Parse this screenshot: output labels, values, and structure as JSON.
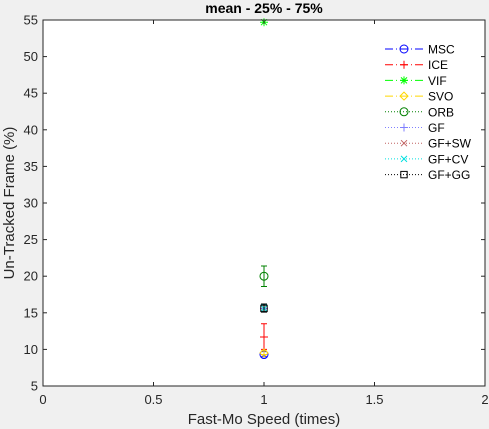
{
  "chart_data": {
    "type": "scatter",
    "title": "mean - 25% - 75%",
    "xlabel": "Fast-Mo Speed (times)",
    "ylabel": "Un-Tracked Frame (%)",
    "xlim": [
      0,
      2
    ],
    "ylim": [
      5,
      55
    ],
    "xticks": [
      0,
      0.5,
      1,
      1.5,
      2
    ],
    "yticks": [
      5,
      10,
      15,
      20,
      25,
      30,
      35,
      40,
      45,
      50,
      55
    ],
    "xtick_labels": [
      "0",
      "0.5",
      "1",
      "1.5",
      "2"
    ],
    "ytick_labels": [
      "5",
      "10",
      "15",
      "20",
      "25",
      "30",
      "35",
      "40",
      "45",
      "50",
      "55"
    ],
    "grid": false,
    "legend_position": "top-right",
    "series": [
      {
        "name": "MSC",
        "x": [
          1
        ],
        "y": [
          9.3
        ],
        "low": [
          9.0
        ],
        "high": [
          9.7
        ],
        "color": "#0000ff",
        "marker": "circle",
        "line": "dashdot"
      },
      {
        "name": "ICE",
        "x": [
          1
        ],
        "y": [
          11.7
        ],
        "low": [
          10.0
        ],
        "high": [
          13.5
        ],
        "color": "#ff0000",
        "marker": "plus",
        "line": "dashdot"
      },
      {
        "name": "VIF",
        "x": [
          1
        ],
        "y": [
          54.7
        ],
        "low": [
          54.7
        ],
        "high": [
          54.7
        ],
        "color": "#00ff00",
        "marker": "star",
        "line": "dashdot"
      },
      {
        "name": "SVO",
        "x": [
          1
        ],
        "y": [
          9.5
        ],
        "low": [
          9.3
        ],
        "high": [
          9.8
        ],
        "color": "#ffd700",
        "marker": "diamond",
        "line": "dashdot"
      },
      {
        "name": "ORB",
        "x": [
          1
        ],
        "y": [
          20.0
        ],
        "low": [
          18.6
        ],
        "high": [
          21.4
        ],
        "color": "#008000",
        "marker": "circle",
        "line": "dotted"
      },
      {
        "name": "GF",
        "x": [
          1
        ],
        "y": [
          15.6
        ],
        "low": [
          15.2
        ],
        "high": [
          16.1
        ],
        "color": "#7f7fff",
        "marker": "plus",
        "line": "dotted"
      },
      {
        "name": "GF+SW",
        "x": [
          1
        ],
        "y": [
          15.6
        ],
        "low": [
          15.2
        ],
        "high": [
          16.1
        ],
        "color": "#c06060",
        "marker": "cross",
        "line": "dotted"
      },
      {
        "name": "GF+CV",
        "x": [
          1
        ],
        "y": [
          15.6
        ],
        "low": [
          15.2
        ],
        "high": [
          16.1
        ],
        "color": "#00e0e0",
        "marker": "cross",
        "line": "dotted"
      },
      {
        "name": "GF+GG",
        "x": [
          1
        ],
        "y": [
          15.6
        ],
        "low": [
          15.1
        ],
        "high": [
          16.2
        ],
        "color": "#000000",
        "marker": "square",
        "line": "dotted"
      }
    ]
  }
}
